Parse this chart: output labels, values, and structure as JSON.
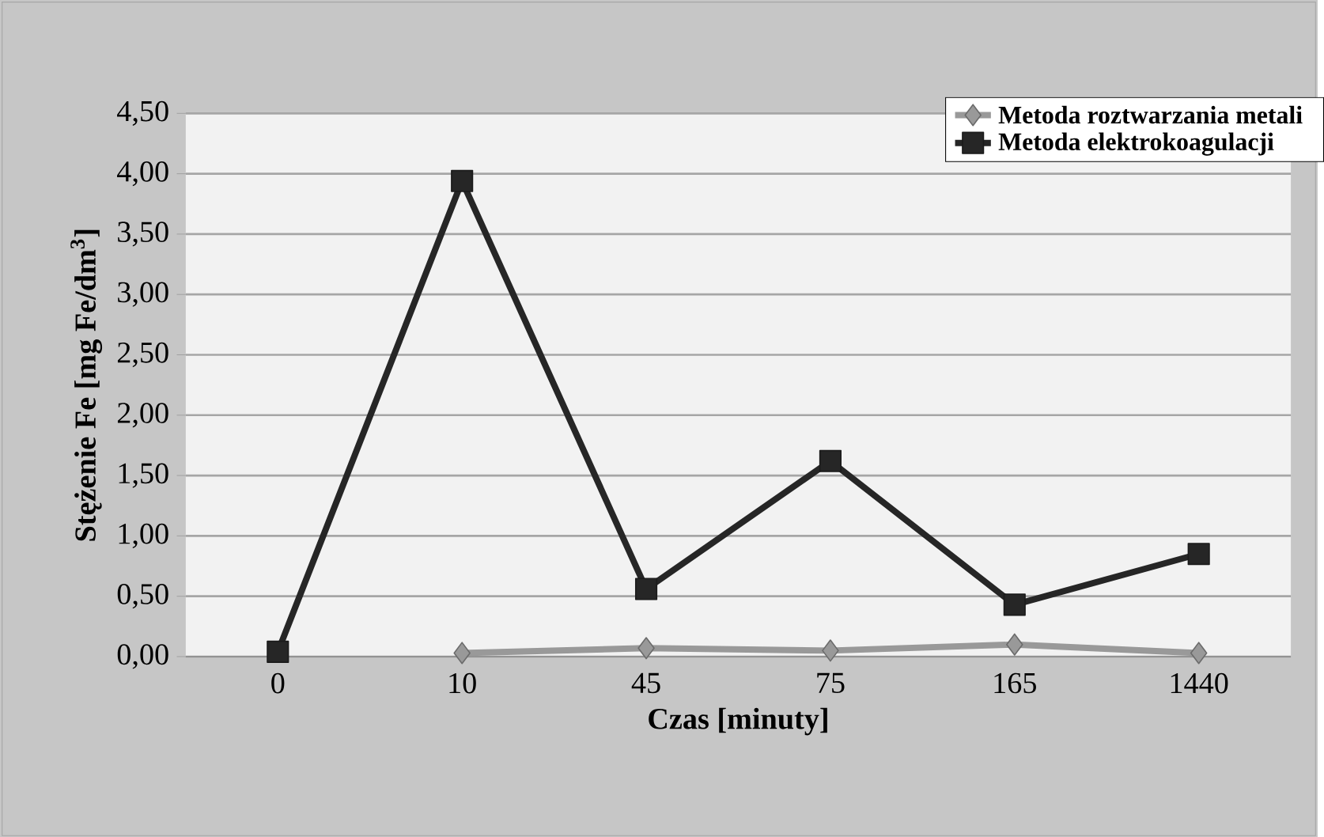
{
  "chart_data": {
    "type": "line",
    "xlabel": "Czas [minuty]",
    "ylabel": "Stężenie Fe [mg Fe/dm$^{3}$]",
    "categories": [
      "0",
      "10",
      "45",
      "75",
      "165",
      "1440"
    ],
    "series": [
      {
        "name": "Metoda roztwarzania metali",
        "color": "#999999",
        "marker": "diamond",
        "values": [
          null,
          0.03,
          0.07,
          0.05,
          0.1,
          0.03
        ]
      },
      {
        "name": "Metoda elektrokoagulacji",
        "color": "#262626",
        "marker": "square",
        "values": [
          0.04,
          3.94,
          0.56,
          1.62,
          0.43,
          0.85
        ]
      }
    ],
    "ylim": [
      0,
      4.5
    ],
    "yticks": [
      {
        "value": 0,
        "label": "0,00"
      },
      {
        "value": 0.5,
        "label": "0,50"
      },
      {
        "value": 1,
        "label": "1,00"
      },
      {
        "value": 1.5,
        "label": "1,50"
      },
      {
        "value": 2,
        "label": "2,00"
      },
      {
        "value": 2.5,
        "label": "2,50"
      },
      {
        "value": 3,
        "label": "3,00"
      },
      {
        "value": 3.5,
        "label": "3,50"
      },
      {
        "value": 4,
        "label": "4,00"
      },
      {
        "value": 4.5,
        "label": "4,50"
      }
    ],
    "grid": "y",
    "legend": "top right",
    "line_style": "solid"
  }
}
